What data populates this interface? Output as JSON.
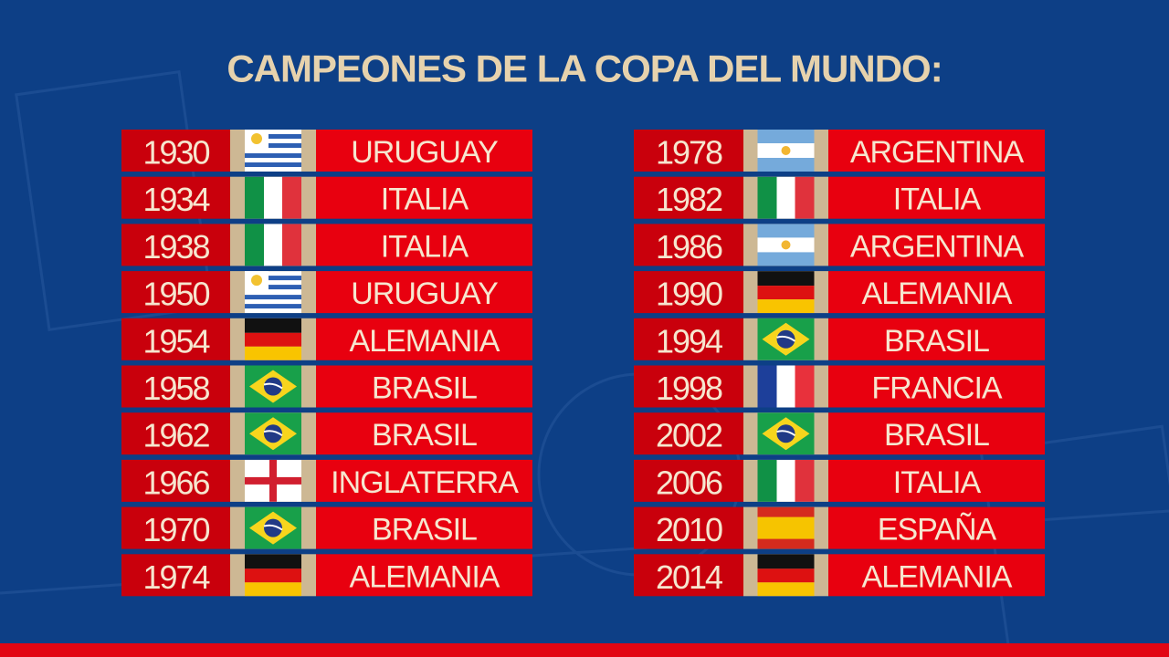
{
  "title": "CAMPEONES DE LA COPA DEL MUNDO:",
  "left": [
    {
      "year": 1930,
      "champion": "URUGUAY"
    },
    {
      "year": 1934,
      "champion": "ITALIA"
    },
    {
      "year": 1938,
      "champion": "ITALIA"
    },
    {
      "year": 1950,
      "champion": "URUGUAY"
    },
    {
      "year": 1954,
      "champion": "ALEMANIA"
    },
    {
      "year": 1958,
      "champion": "BRASIL"
    },
    {
      "year": 1962,
      "champion": "BRASIL"
    },
    {
      "year": 1966,
      "champion": "INGLATERRA"
    },
    {
      "year": 1970,
      "champion": "BRASIL"
    },
    {
      "year": 1974,
      "champion": "ALEMANIA"
    }
  ],
  "right": [
    {
      "year": 1978,
      "champion": "ARGENTINA"
    },
    {
      "year": 1982,
      "champion": "ITALIA"
    },
    {
      "year": 1986,
      "champion": "ARGENTINA"
    },
    {
      "year": 1990,
      "champion": "ALEMANIA"
    },
    {
      "year": 1994,
      "champion": "BRASIL"
    },
    {
      "year": 1998,
      "champion": "FRANCIA"
    },
    {
      "year": 2002,
      "champion": "BRASIL"
    },
    {
      "year": 2006,
      "champion": "ITALIA"
    },
    {
      "year": 2010,
      "champion": "ESPAÑA"
    },
    {
      "year": 2014,
      "champion": "ALEMANIA"
    }
  ]
}
